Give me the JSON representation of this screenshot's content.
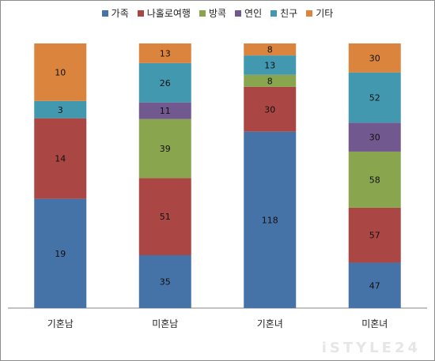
{
  "chart_data": {
    "type": "bar",
    "stacked": true,
    "categories": [
      "기혼남",
      "미혼남",
      "기혼녀",
      "미혼녀"
    ],
    "series": [
      {
        "name": "가족",
        "color": "#4572A7",
        "values": [
          19,
          35,
          118,
          47
        ]
      },
      {
        "name": "나홀로여행",
        "color": "#AA4643",
        "values": [
          14,
          51,
          30,
          57
        ]
      },
      {
        "name": "방콕",
        "color": "#89A54E",
        "values": [
          0,
          39,
          8,
          58
        ]
      },
      {
        "name": "연인",
        "color": "#71588F",
        "values": [
          0,
          11,
          0,
          30
        ]
      },
      {
        "name": "친구",
        "color": "#4198AF",
        "values": [
          3,
          26,
          13,
          52
        ]
      },
      {
        "name": "기타",
        "color": "#DB843D",
        "values": [
          10,
          13,
          8,
          30
        ]
      }
    ],
    "title": "",
    "xlabel": "",
    "ylabel": "",
    "grid": false,
    "legend_position": "top-center",
    "percent_stacked": true
  },
  "watermark": "iSTYLE24"
}
